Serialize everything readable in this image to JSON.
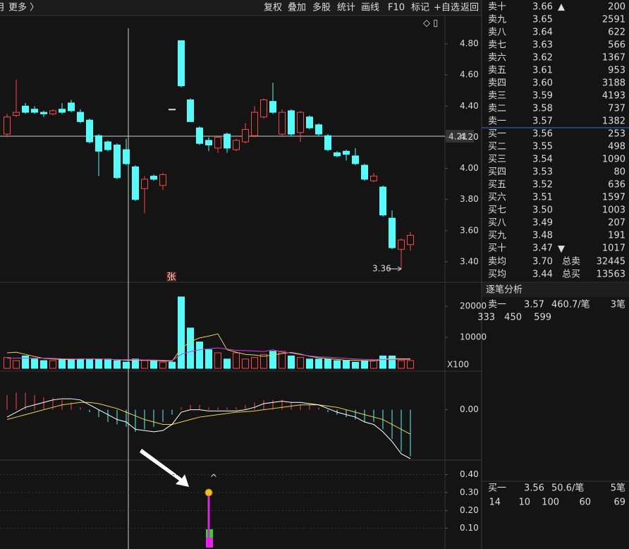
{
  "toolbar": {
    "left": [
      "月",
      "更多 〉"
    ],
    "buttons": [
      "复权",
      "叠加",
      "多股",
      "统计",
      "画线",
      "F10",
      "标记",
      "+自选",
      "返回"
    ]
  },
  "kline": {
    "ylim": [
      3.3,
      4.9
    ],
    "yticks": [
      {
        "value": 4.8,
        "label": "4.80"
      },
      {
        "value": 4.6,
        "label": "4.60"
      },
      {
        "value": 4.4,
        "label": "4.40"
      },
      {
        "value": 4.2,
        "label": "4.20"
      },
      {
        "value": 4.0,
        "label": "4.00"
      },
      {
        "value": 3.8,
        "label": "3.80"
      },
      {
        "value": 3.6,
        "label": "3.60"
      },
      {
        "value": 3.4,
        "label": "3.40"
      }
    ],
    "up_color": "#ff4444",
    "down_color": "#54fcfc",
    "open": [
      4.22,
      4.34,
      4.4,
      4.38,
      4.36,
      4.35,
      4.38,
      4.42,
      4.36,
      4.31,
      4.21,
      4.17,
      4.15,
      4.12,
      4.01,
      3.87,
      3.95,
      3.89,
      4.38,
      4.82,
      4.44,
      4.26,
      4.18,
      4.13,
      4.22,
      4.12,
      4.17,
      4.21,
      4.33,
      4.43,
      4.22,
      4.37,
      4.23,
      4.33,
      4.28,
      4.21,
      4.1,
      4.11,
      4.08,
      4.02,
      3.92,
      3.88,
      3.68,
      3.48,
      3.51
    ],
    "close": [
      4.33,
      4.36,
      4.36,
      4.36,
      4.35,
      4.37,
      4.36,
      4.37,
      4.3,
      4.17,
      4.11,
      4.12,
      3.94,
      4.03,
      3.8,
      3.93,
      3.93,
      3.96,
      4.38,
      4.53,
      4.3,
      4.16,
      4.15,
      4.2,
      4.13,
      4.18,
      4.25,
      4.36,
      4.44,
      4.36,
      4.36,
      4.22,
      4.36,
      4.26,
      4.22,
      4.12,
      4.08,
      4.09,
      4.03,
      3.93,
      3.95,
      3.7,
      3.49,
      3.54,
      3.57
    ],
    "high": [
      4.35,
      4.57,
      4.42,
      4.4,
      4.37,
      4.38,
      4.42,
      4.44,
      4.38,
      4.32,
      4.22,
      4.18,
      4.16,
      4.19,
      4.02,
      3.95,
      3.96,
      3.97,
      4.38,
      4.82,
      4.45,
      4.27,
      4.2,
      4.21,
      4.23,
      4.19,
      4.29,
      4.4,
      4.45,
      4.55,
      4.38,
      4.38,
      4.37,
      4.34,
      4.29,
      4.22,
      4.11,
      4.12,
      4.13,
      4.03,
      3.97,
      3.89,
      3.73,
      3.55,
      3.59
    ],
    "low": [
      4.2,
      4.33,
      4.35,
      4.35,
      4.33,
      4.34,
      4.35,
      4.36,
      4.29,
      4.16,
      3.95,
      4.11,
      3.93,
      4.02,
      3.79,
      3.71,
      3.92,
      3.86,
      4.38,
      4.52,
      4.3,
      4.15,
      4.11,
      4.1,
      4.1,
      4.11,
      4.16,
      4.2,
      4.32,
      4.35,
      4.21,
      4.21,
      4.17,
      4.25,
      4.21,
      4.11,
      4.07,
      4.05,
      4.02,
      3.92,
      3.91,
      3.69,
      3.48,
      3.36,
      3.47
    ],
    "crosshair_price": "4.21",
    "low_label": "3.36",
    "badge": "张"
  },
  "volume": {
    "ylim": [
      0,
      25000
    ],
    "yticks": [
      10000,
      20000
    ],
    "unit": "X100",
    "ma1_color": "#e8d44a",
    "ma2_color": "#d040e0",
    "values": [
      3500,
      2500,
      4000,
      3000,
      2500,
      2500,
      3000,
      3000,
      3000,
      3000,
      3000,
      3000,
      2500,
      2000,
      3000,
      2500,
      2500,
      2000,
      2000,
      23000,
      13000,
      8500,
      6000,
      5000,
      3000,
      5000,
      3000,
      3500,
      4500,
      5500,
      5500,
      4000,
      3500,
      3000,
      3000,
      3000,
      2500,
      2500,
      2000,
      2500,
      2500,
      4000,
      4000,
      2500,
      2500
    ],
    "ma1": [
      5000,
      5200,
      4500,
      3800,
      3200,
      3000,
      2900,
      2800,
      3000,
      3000,
      3000,
      2900,
      2800,
      2600,
      2600,
      2600,
      2500,
      2400,
      2300,
      6400,
      8600,
      9800,
      10400,
      11100,
      6000,
      5200,
      4500,
      4300,
      3900,
      4300,
      4800,
      5100,
      4600,
      3900,
      3400,
      3100,
      2900,
      2600,
      2600,
      2500,
      2400,
      2800,
      3200,
      3100,
      3100
    ],
    "ma2": [
      3200,
      3300,
      3300,
      3300,
      3300,
      3200,
      3100,
      3000,
      3000,
      3000,
      3000,
      2900,
      2800,
      2800,
      2800,
      2700,
      2700,
      2600,
      2500,
      4500,
      5400,
      6000,
      6300,
      6600,
      6200,
      5800,
      5700,
      5600,
      5400,
      6000,
      5200,
      4900,
      4400,
      4000,
      3700,
      3600,
      3400,
      3200,
      3000,
      2900,
      2800,
      2800,
      2800,
      2800,
      2800
    ]
  },
  "macd": {
    "ylim": [
      -0.2,
      0.1
    ],
    "yticks": [
      {
        "value": 0,
        "label": "0.00"
      }
    ],
    "dif_color": "#ffffff",
    "dea_color": "#e8d44a",
    "hist": [
      0.06,
      0.07,
      0.07,
      0.06,
      0.05,
      0.05,
      0.04,
      0.03,
      0.01,
      -0.01,
      -0.03,
      -0.05,
      -0.06,
      -0.07,
      -0.09,
      -0.08,
      -0.07,
      -0.05,
      -0.02,
      0.01,
      0.02,
      0.02,
      0.01,
      0.01,
      0.01,
      0.01,
      0.02,
      0.03,
      0.04,
      0.04,
      0.04,
      0.03,
      0.02,
      0.02,
      0.01,
      -0.01,
      -0.02,
      -0.03,
      -0.04,
      -0.05,
      -0.05,
      -0.08,
      -0.12,
      -0.17,
      -0.19
    ],
    "dif": [
      -0.03,
      -0.01,
      0.01,
      0.02,
      0.03,
      0.04,
      0.045,
      0.045,
      0.04,
      0.02,
      0,
      -0.02,
      -0.04,
      -0.05,
      -0.08,
      -0.085,
      -0.09,
      -0.085,
      -0.06,
      -0.01,
      0,
      0,
      -0.005,
      -0.005,
      -0.005,
      -0.005,
      0,
      0.01,
      0.025,
      0.03,
      0.035,
      0.03,
      0.03,
      0.025,
      0.02,
      0.005,
      -0.01,
      -0.02,
      -0.03,
      -0.05,
      -0.06,
      -0.09,
      -0.13,
      -0.18,
      -0.2
    ],
    "dea": [
      -0.04,
      -0.03,
      -0.02,
      -0.01,
      0,
      0.01,
      0.02,
      0.025,
      0.03,
      0.03,
      0.025,
      0.015,
      0.005,
      -0.01,
      -0.025,
      -0.04,
      -0.05,
      -0.06,
      -0.06,
      -0.05,
      -0.04,
      -0.03,
      -0.025,
      -0.02,
      -0.015,
      -0.01,
      -0.008,
      -0.005,
      0,
      0.005,
      0.01,
      0.015,
      0.02,
      0.02,
      0.02,
      0.015,
      0.01,
      0,
      -0.01,
      -0.02,
      -0.03,
      -0.04,
      -0.06,
      -0.08,
      -0.1
    ]
  },
  "signal": {
    "ylim": [
      0,
      0.45
    ],
    "yticks": [
      {
        "value": 0.4,
        "label": "0.40"
      },
      {
        "value": 0.3,
        "label": "0.30"
      },
      {
        "value": 0.2,
        "label": "0.20"
      },
      {
        "value": 0.1,
        "label": "0.10"
      }
    ],
    "color": "#e020e0",
    "values": [
      null,
      null,
      null,
      null,
      null,
      null,
      null,
      null,
      null,
      null,
      null,
      null,
      null,
      null,
      null,
      null,
      null,
      null,
      null,
      null,
      null,
      null,
      0.3,
      null,
      null,
      null,
      null,
      null,
      null,
      null,
      null,
      null,
      null,
      null,
      null,
      null,
      null,
      null,
      null,
      null,
      null,
      null,
      null,
      null,
      null
    ]
  },
  "orderbook": {
    "rows": [
      {
        "label": "卖十",
        "price": "3.66",
        "volume": "200",
        "color": "#ff4444"
      },
      {
        "label": "卖九",
        "price": "3.65",
        "volume": "2591",
        "color": "#ff4444"
      },
      {
        "label": "卖八",
        "price": "3.64",
        "volume": "622",
        "color": "#ff4444"
      },
      {
        "label": "卖七",
        "price": "3.63",
        "volume": "566",
        "color": "#ff4444"
      },
      {
        "label": "卖六",
        "price": "3.62",
        "volume": "1367",
        "color": "#ff4444"
      },
      {
        "label": "卖五",
        "price": "3.61",
        "volume": "953",
        "color": "#ff4444"
      },
      {
        "label": "卖四",
        "price": "3.60",
        "volume": "3188",
        "color": "#ff4444"
      },
      {
        "label": "卖三",
        "price": "3.59",
        "volume": "4193",
        "color": "#ff4444"
      },
      {
        "label": "卖二",
        "price": "3.58",
        "volume": "737",
        "color": "#ff4444"
      },
      {
        "label": "卖一",
        "price": "3.57",
        "volume": "1382",
        "color": "#ff4444"
      },
      {
        "label": "买一",
        "price": "3.56",
        "volume": "253",
        "color": "#ff4444"
      },
      {
        "label": "买二",
        "price": "3.55",
        "volume": "498",
        "color": "#ff4444"
      },
      {
        "label": "买三",
        "price": "3.54",
        "volume": "1090",
        "color": "#dddddd"
      },
      {
        "label": "买四",
        "price": "3.53",
        "volume": "80",
        "color": "#3fcf3f"
      },
      {
        "label": "买五",
        "price": "3.52",
        "volume": "636",
        "color": "#3fcf3f"
      },
      {
        "label": "买六",
        "price": "3.51",
        "volume": "1597",
        "color": "#3fcf3f"
      },
      {
        "label": "买七",
        "price": "3.50",
        "volume": "1003",
        "color": "#3fcf3f"
      },
      {
        "label": "买八",
        "price": "3.49",
        "volume": "207",
        "color": "#3fcf3f"
      },
      {
        "label": "买九",
        "price": "3.48",
        "volume": "191",
        "color": "#3fcf3f"
      },
      {
        "label": "买十",
        "price": "3.47",
        "volume": "1017",
        "color": "#3fcf3f"
      }
    ],
    "summary": [
      {
        "label": "卖均",
        "price": "3.70",
        "total_label": "总卖",
        "total": "32445",
        "color": "#ff4444"
      },
      {
        "label": "买均",
        "price": "3.44",
        "total_label": "总买",
        "total": "13563",
        "color": "#3fcf3f"
      }
    ]
  },
  "tick_analysis": {
    "title": "逐笔分析",
    "sell": {
      "label": "卖一",
      "price": "3.57",
      "avg": "460.7/笔",
      "count": "3笔",
      "orders": [
        {
          "text": "333",
          "color": "#f5c342"
        },
        {
          "text": "450",
          "color": "#f5c342"
        },
        {
          "text": "599",
          "color": "#e040e0"
        }
      ]
    },
    "buy": {
      "label": "买一",
      "price": "3.56",
      "avg": "50.6/笔",
      "count": "5笔",
      "orders": [
        {
          "text": "14",
          "color": "#f5c342"
        },
        {
          "text": "10",
          "color": "#f5c342"
        },
        {
          "text": "100",
          "color": "#f5c342"
        },
        {
          "text": "60",
          "color": "#f5c342"
        },
        {
          "text": "69",
          "color": "#f5c342"
        }
      ]
    }
  }
}
